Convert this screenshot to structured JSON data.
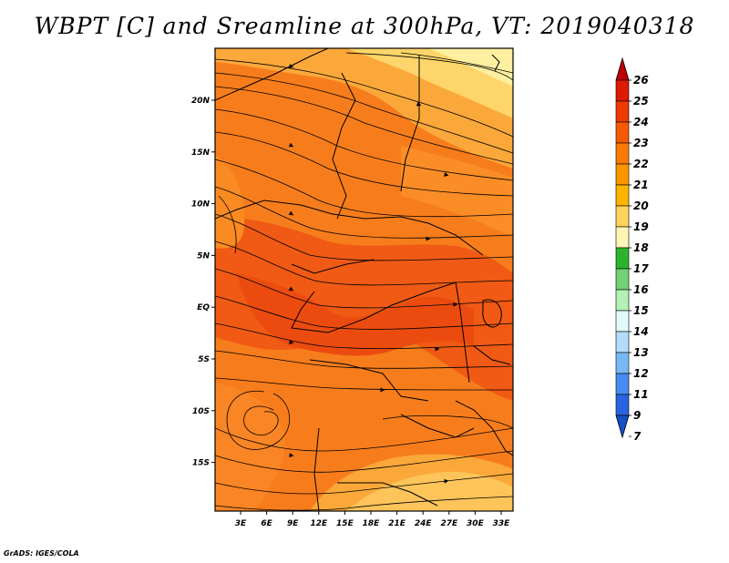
{
  "title": "WBPT [C] and Sreamline at 300hPa, VT: 2019040318",
  "footer": "GrADS: IGES/COLA",
  "map": {
    "lat_labels": [
      "20N",
      "15N",
      "10N",
      "5N",
      "EQ",
      "5S",
      "10S",
      "15S"
    ],
    "lon_labels": [
      "3E",
      "6E",
      "9E",
      "12E",
      "15E",
      "18E",
      "21E",
      "24E",
      "27E",
      "30E",
      "33E"
    ],
    "lon_range": [
      0,
      35
    ],
    "lat_range": [
      -20,
      24
    ]
  },
  "colorbar": {
    "levels": [
      "26",
      "25",
      "24",
      "23",
      "22",
      "21",
      "20",
      "19",
      "18",
      "17",
      "16",
      "15",
      "14",
      "13",
      "12",
      "11",
      "9",
      "7"
    ],
    "colors": [
      "#c00000",
      "#de1a00",
      "#f03a00",
      "#f65a00",
      "#fb7a00",
      "#fd9500",
      "#ffb400",
      "#ffd35a",
      "#fef4b4",
      "#2db42d",
      "#73d273",
      "#b4f0b4",
      "#e1fafa",
      "#b4dcfa",
      "#78b9f5",
      "#468cf0",
      "#2864e0",
      "#1450c8"
    ]
  },
  "colors": {
    "field_dark": "#f05a14",
    "field_mid": "#f77d1c",
    "field_light": "#fba83a",
    "field_pale": "#fdd56a",
    "border": "#000000"
  }
}
